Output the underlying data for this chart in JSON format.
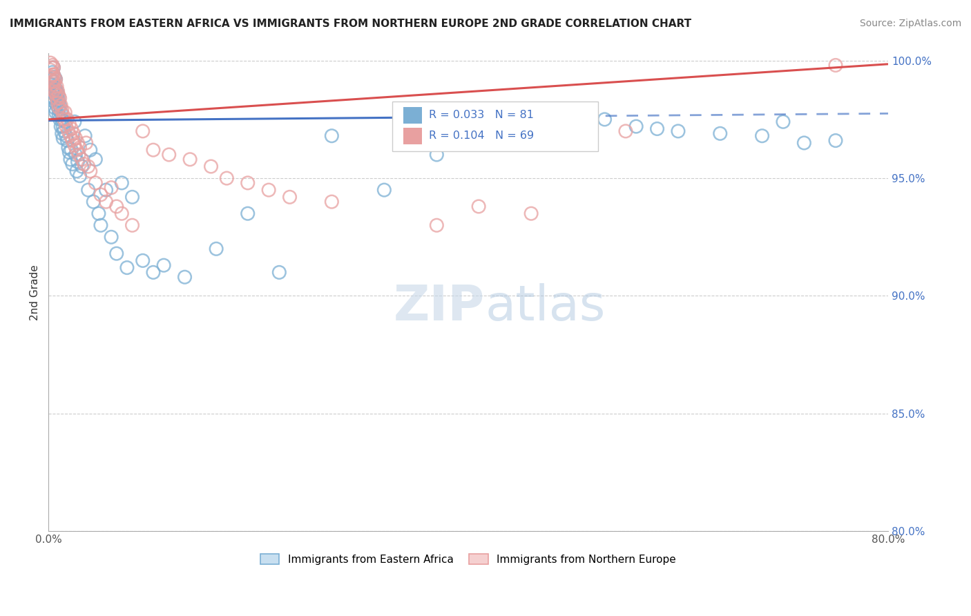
{
  "title": "IMMIGRANTS FROM EASTERN AFRICA VS IMMIGRANTS FROM NORTHERN EUROPE 2ND GRADE CORRELATION CHART",
  "source": "Source: ZipAtlas.com",
  "ylabel": "2nd Grade",
  "legend_bottom": [
    "Immigrants from Eastern Africa",
    "Immigrants from Northern Europe"
  ],
  "R_blue": 0.033,
  "N_blue": 81,
  "R_pink": 0.104,
  "N_pink": 69,
  "xlim": [
    0.0,
    0.8
  ],
  "ylim": [
    0.8,
    1.003
  ],
  "xticks": [
    0.0,
    0.1,
    0.2,
    0.3,
    0.4,
    0.5,
    0.6,
    0.7,
    0.8
  ],
  "xticklabels": [
    "0.0%",
    "",
    "",
    "",
    "",
    "",
    "",
    "",
    "80.0%"
  ],
  "yticks": [
    0.8,
    0.85,
    0.9,
    0.95,
    1.0
  ],
  "yticklabels": [
    "80.0%",
    "85.0%",
    "90.0%",
    "95.0%",
    "100.0%"
  ],
  "color_blue": "#7bafd4",
  "color_pink": "#e8a0a0",
  "trend_blue": "#4472c4",
  "trend_pink": "#d94f4f",
  "background": "#ffffff",
  "blue_trend_solid_end": 0.37,
  "blue_trend_y0": 0.9745,
  "blue_trend_y1": 0.9775,
  "pink_trend_y0": 0.975,
  "pink_trend_y1": 0.9985,
  "blue_x": [
    0.002,
    0.003,
    0.003,
    0.004,
    0.004,
    0.004,
    0.005,
    0.005,
    0.005,
    0.005,
    0.006,
    0.006,
    0.006,
    0.006,
    0.007,
    0.007,
    0.007,
    0.007,
    0.008,
    0.008,
    0.008,
    0.009,
    0.009,
    0.01,
    0.01,
    0.01,
    0.011,
    0.011,
    0.012,
    0.012,
    0.013,
    0.013,
    0.014,
    0.014,
    0.015,
    0.016,
    0.017,
    0.018,
    0.019,
    0.02,
    0.021,
    0.022,
    0.023,
    0.025,
    0.026,
    0.027,
    0.028,
    0.03,
    0.032,
    0.035,
    0.038,
    0.04,
    0.043,
    0.045,
    0.048,
    0.05,
    0.055,
    0.06,
    0.065,
    0.07,
    0.075,
    0.08,
    0.09,
    0.1,
    0.11,
    0.13,
    0.16,
    0.19,
    0.22,
    0.27,
    0.32,
    0.37,
    0.53,
    0.56,
    0.58,
    0.6,
    0.64,
    0.68,
    0.7,
    0.72,
    0.75
  ],
  "blue_y": [
    0.99,
    0.985,
    0.992,
    0.988,
    0.983,
    0.995,
    0.991,
    0.987,
    0.984,
    0.997,
    0.986,
    0.989,
    0.993,
    0.98,
    0.985,
    0.988,
    0.992,
    0.978,
    0.984,
    0.987,
    0.981,
    0.986,
    0.982,
    0.979,
    0.983,
    0.977,
    0.981,
    0.975,
    0.978,
    0.972,
    0.975,
    0.969,
    0.972,
    0.967,
    0.97,
    0.974,
    0.968,
    0.966,
    0.963,
    0.961,
    0.958,
    0.962,
    0.956,
    0.974,
    0.96,
    0.953,
    0.957,
    0.951,
    0.955,
    0.968,
    0.945,
    0.962,
    0.94,
    0.958,
    0.935,
    0.93,
    0.945,
    0.925,
    0.918,
    0.948,
    0.912,
    0.942,
    0.915,
    0.91,
    0.913,
    0.908,
    0.92,
    0.935,
    0.91,
    0.968,
    0.945,
    0.96,
    0.975,
    0.972,
    0.971,
    0.97,
    0.969,
    0.968,
    0.974,
    0.965,
    0.966
  ],
  "pink_x": [
    0.002,
    0.002,
    0.003,
    0.003,
    0.004,
    0.004,
    0.004,
    0.005,
    0.005,
    0.005,
    0.005,
    0.006,
    0.006,
    0.007,
    0.007,
    0.008,
    0.008,
    0.009,
    0.009,
    0.01,
    0.01,
    0.011,
    0.012,
    0.013,
    0.014,
    0.015,
    0.016,
    0.017,
    0.018,
    0.019,
    0.02,
    0.021,
    0.022,
    0.023,
    0.024,
    0.025,
    0.026,
    0.027,
    0.028,
    0.029,
    0.03,
    0.032,
    0.034,
    0.036,
    0.038,
    0.04,
    0.045,
    0.05,
    0.055,
    0.06,
    0.065,
    0.07,
    0.08,
    0.09,
    0.1,
    0.115,
    0.135,
    0.155,
    0.17,
    0.19,
    0.21,
    0.23,
    0.27,
    0.34,
    0.37,
    0.41,
    0.46,
    0.55,
    0.75
  ],
  "pink_y": [
    0.996,
    0.999,
    0.993,
    0.997,
    0.994,
    0.991,
    0.998,
    0.99,
    0.994,
    0.997,
    0.987,
    0.991,
    0.988,
    0.992,
    0.986,
    0.989,
    0.984,
    0.987,
    0.982,
    0.985,
    0.98,
    0.984,
    0.981,
    0.979,
    0.977,
    0.975,
    0.978,
    0.972,
    0.975,
    0.97,
    0.973,
    0.968,
    0.971,
    0.966,
    0.969,
    0.964,
    0.967,
    0.962,
    0.965,
    0.96,
    0.963,
    0.958,
    0.956,
    0.965,
    0.955,
    0.953,
    0.948,
    0.943,
    0.94,
    0.946,
    0.938,
    0.935,
    0.93,
    0.97,
    0.962,
    0.96,
    0.958,
    0.955,
    0.95,
    0.948,
    0.945,
    0.942,
    0.94,
    0.968,
    0.93,
    0.938,
    0.935,
    0.97,
    0.998
  ]
}
